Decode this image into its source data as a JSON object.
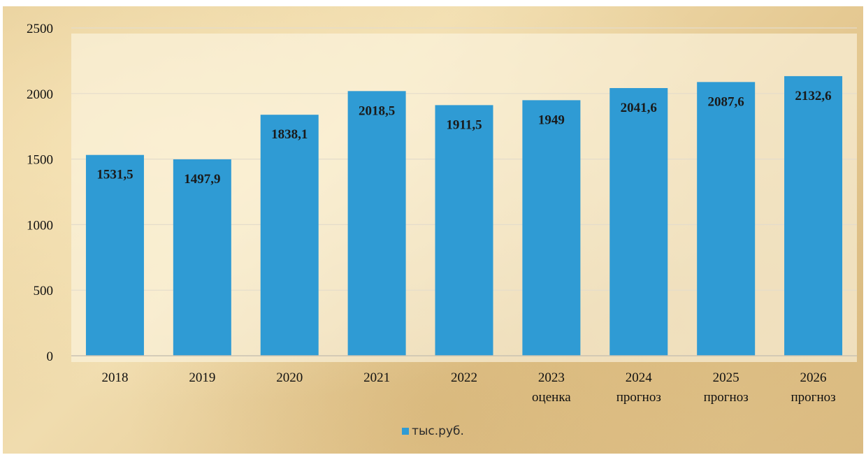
{
  "colors": {
    "bar": "#2f9bd4"
  },
  "chart_data": {
    "type": "bar",
    "categories": [
      [
        "2018"
      ],
      [
        "2019"
      ],
      [
        "2020"
      ],
      [
        "2021"
      ],
      [
        "2022"
      ],
      [
        "2023",
        "оценка"
      ],
      [
        "2024",
        "прогноз"
      ],
      [
        "2025",
        "прогноз"
      ],
      [
        "2026",
        "прогноз"
      ]
    ],
    "series": [
      {
        "name": "тыс.руб.",
        "values": [
          1531.5,
          1497.9,
          1838.1,
          2018.5,
          1911.5,
          1949,
          2041.6,
          2087.6,
          2132.6
        ],
        "labels": [
          "1531,5",
          "1497,9",
          "1838,1",
          "2018,5",
          "1911,5",
          "1949",
          "2041,6",
          "2087,6",
          "2132,6"
        ]
      }
    ],
    "yticks": [
      "0",
      "500",
      "1000",
      "1500",
      "2000",
      "2500"
    ],
    "ylim": [
      0,
      2500
    ],
    "grid": true,
    "legend_position": "bottom"
  }
}
